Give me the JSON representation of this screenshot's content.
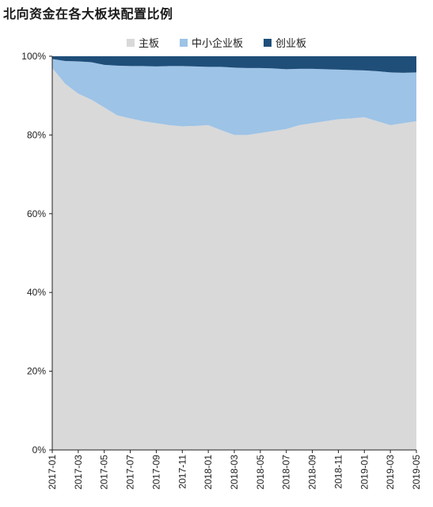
{
  "chart_data": {
    "type": "area",
    "title": "北向资金在各大板块配置比例",
    "stacked": true,
    "x": [
      "2017-01",
      "2017-02",
      "2017-03",
      "2017-04",
      "2017-05",
      "2017-06",
      "2017-07",
      "2017-08",
      "2017-09",
      "2017-10",
      "2017-11",
      "2017-12",
      "2018-01",
      "2018-02",
      "2018-03",
      "2018-04",
      "2018-05",
      "2018-06",
      "2018-07",
      "2018-08",
      "2018-09",
      "2018-10",
      "2018-11",
      "2018-12",
      "2019-01",
      "2019-02",
      "2019-03",
      "2019-04",
      "2019-05"
    ],
    "x_tick_labels": [
      "2017-01",
      "2017-03",
      "2017-05",
      "2017-07",
      "2017-09",
      "2017-11",
      "2018-01",
      "2018-03",
      "2018-05",
      "2018-07",
      "2018-09",
      "2018-11",
      "2019-01",
      "2019-03",
      "2019-05"
    ],
    "series": [
      {
        "name": "主板",
        "color": "#d9d9d9",
        "values": [
          97,
          93,
          90.5,
          89,
          87,
          85,
          84.2,
          83.5,
          83,
          82.5,
          82.2,
          82.3,
          82.5,
          81.2,
          80,
          80,
          80.5,
          81,
          81.5,
          82.5,
          83,
          83.5,
          84,
          84.2,
          84.5,
          83.5,
          82.5,
          83,
          83.5
        ]
      },
      {
        "name": "中小企业板",
        "color": "#9dc3e6",
        "values": [
          2.3,
          5.8,
          8.2,
          9.5,
          10.8,
          12.6,
          13.3,
          14,
          14.4,
          15,
          15.3,
          15.1,
          14.8,
          16.1,
          17.1,
          17,
          16.5,
          15.9,
          15.2,
          14.3,
          13.8,
          13.2,
          12.6,
          12.3,
          11.9,
          12.7,
          13.4,
          12.8,
          12.4
        ]
      },
      {
        "name": "创业板",
        "color": "#1f4e79",
        "values": [
          0.7,
          1.2,
          1.3,
          1.5,
          2.2,
          2.4,
          2.5,
          2.5,
          2.6,
          2.5,
          2.5,
          2.6,
          2.7,
          2.7,
          2.9,
          3,
          3,
          3.1,
          3.3,
          3.2,
          3.2,
          3.3,
          3.4,
          3.5,
          3.6,
          3.8,
          4.1,
          4.2,
          4.1
        ]
      }
    ],
    "y_ticks": [
      "0%",
      "20%",
      "40%",
      "60%",
      "80%",
      "100%"
    ],
    "ylim": [
      0,
      100
    ],
    "legend_position": "top-center",
    "grid": false
  }
}
